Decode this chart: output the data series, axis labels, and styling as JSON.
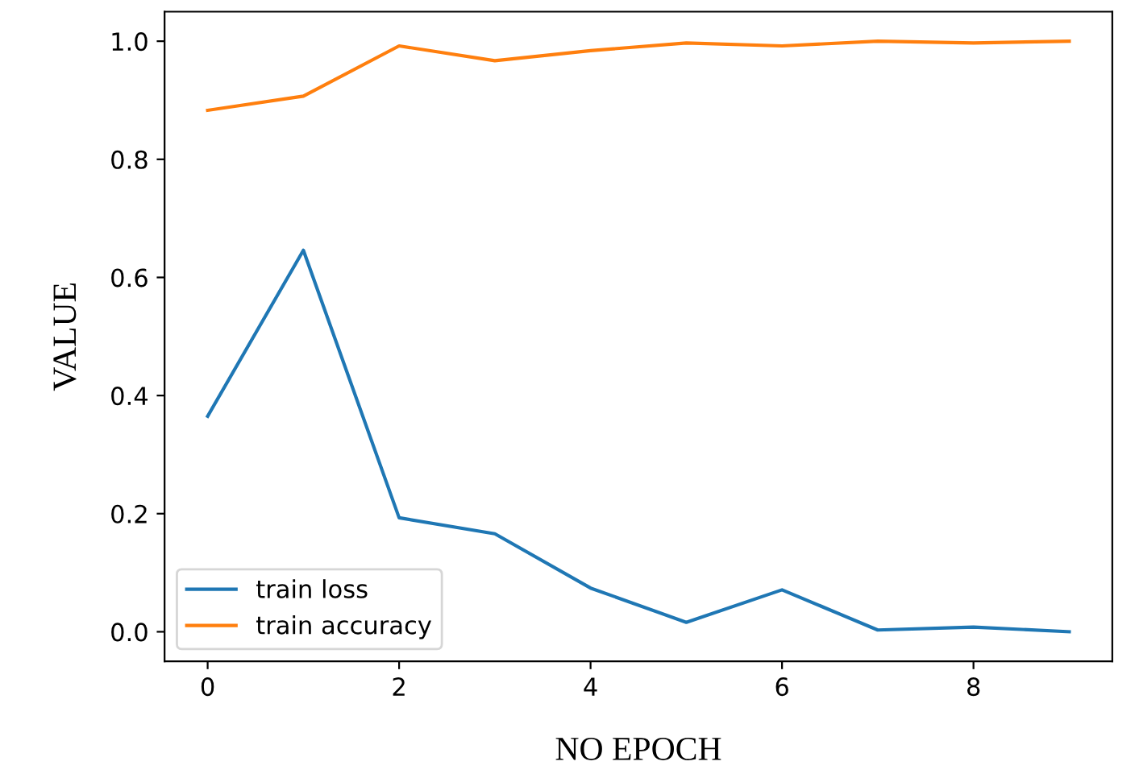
{
  "chart_data": {
    "type": "line",
    "xlabel": "NO EPOCH",
    "ylabel": "VALUE",
    "x": [
      0,
      1,
      2,
      3,
      4,
      5,
      6,
      7,
      8,
      9
    ],
    "series": [
      {
        "name": "train loss",
        "color": "#1f77b4",
        "values": [
          0.365,
          0.646,
          0.193,
          0.166,
          0.074,
          0.016,
          0.071,
          0.003,
          0.008,
          0.0
        ]
      },
      {
        "name": "train accuracy",
        "color": "#ff7f0e",
        "values": [
          0.883,
          0.907,
          0.992,
          0.967,
          0.984,
          0.997,
          0.992,
          1.0,
          0.997,
          1.0
        ]
      }
    ],
    "xlim": [
      -0.45,
      9.45
    ],
    "xticks": [
      0,
      2,
      4,
      6,
      8
    ],
    "ylim": [
      -0.05,
      1.05
    ],
    "yticks": [
      {
        "value": 0,
        "label": "0.0"
      },
      {
        "value": 0.2,
        "label": "0.2"
      },
      {
        "value": 0.4,
        "label": "0.4"
      },
      {
        "value": 0.6,
        "label": "0.6"
      },
      {
        "value": 0.8,
        "label": "0.8"
      },
      {
        "value": 1.0,
        "label": "1.0"
      }
    ],
    "legend": "bottom left",
    "grid": false
  }
}
